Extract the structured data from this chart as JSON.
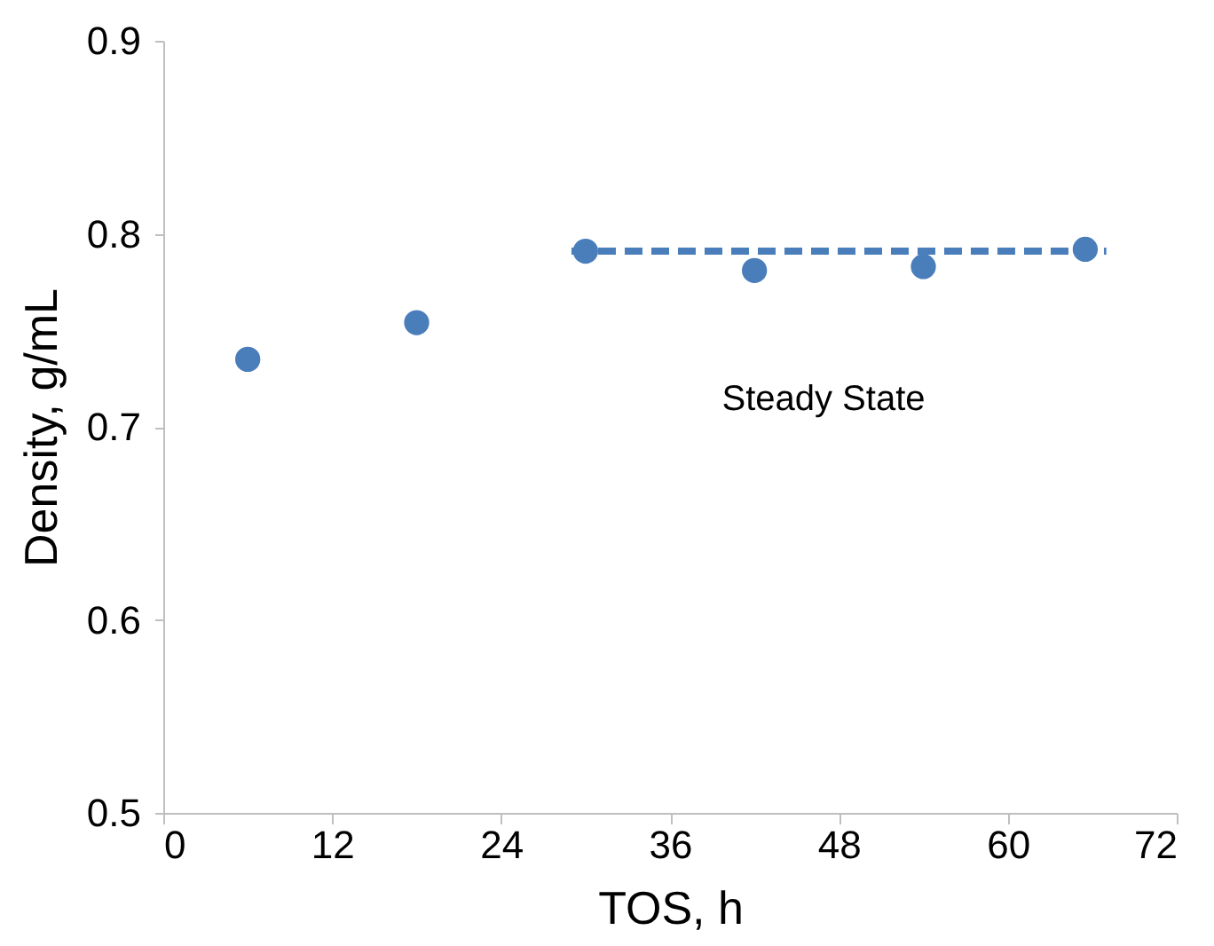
{
  "chart_data": {
    "type": "scatter",
    "xlabel": "TOS, h",
    "ylabel": "Density, g/mL",
    "xlim": [
      0,
      72
    ],
    "xticks": [
      0,
      12,
      24,
      36,
      48,
      60,
      72
    ],
    "ylim": [
      0.5,
      0.9
    ],
    "yticks": [
      0.5,
      0.6,
      0.7,
      0.8,
      0.9
    ],
    "grid": false,
    "marker": "circle",
    "series": [
      {
        "color": "#4a7ebb",
        "x": [
          6,
          18,
          30,
          42,
          54,
          65.5
        ],
        "values": [
          0.735,
          0.754,
          0.791,
          0.781,
          0.783,
          0.792
        ]
      },
      {
        "type": "line",
        "color": "#4a7ebb",
        "line_style": "dashed",
        "marker": "none",
        "x": [
          29,
          67
        ],
        "values": [
          0.791,
          0.791
        ]
      }
    ],
    "annotations": [
      "Steady State"
    ]
  }
}
